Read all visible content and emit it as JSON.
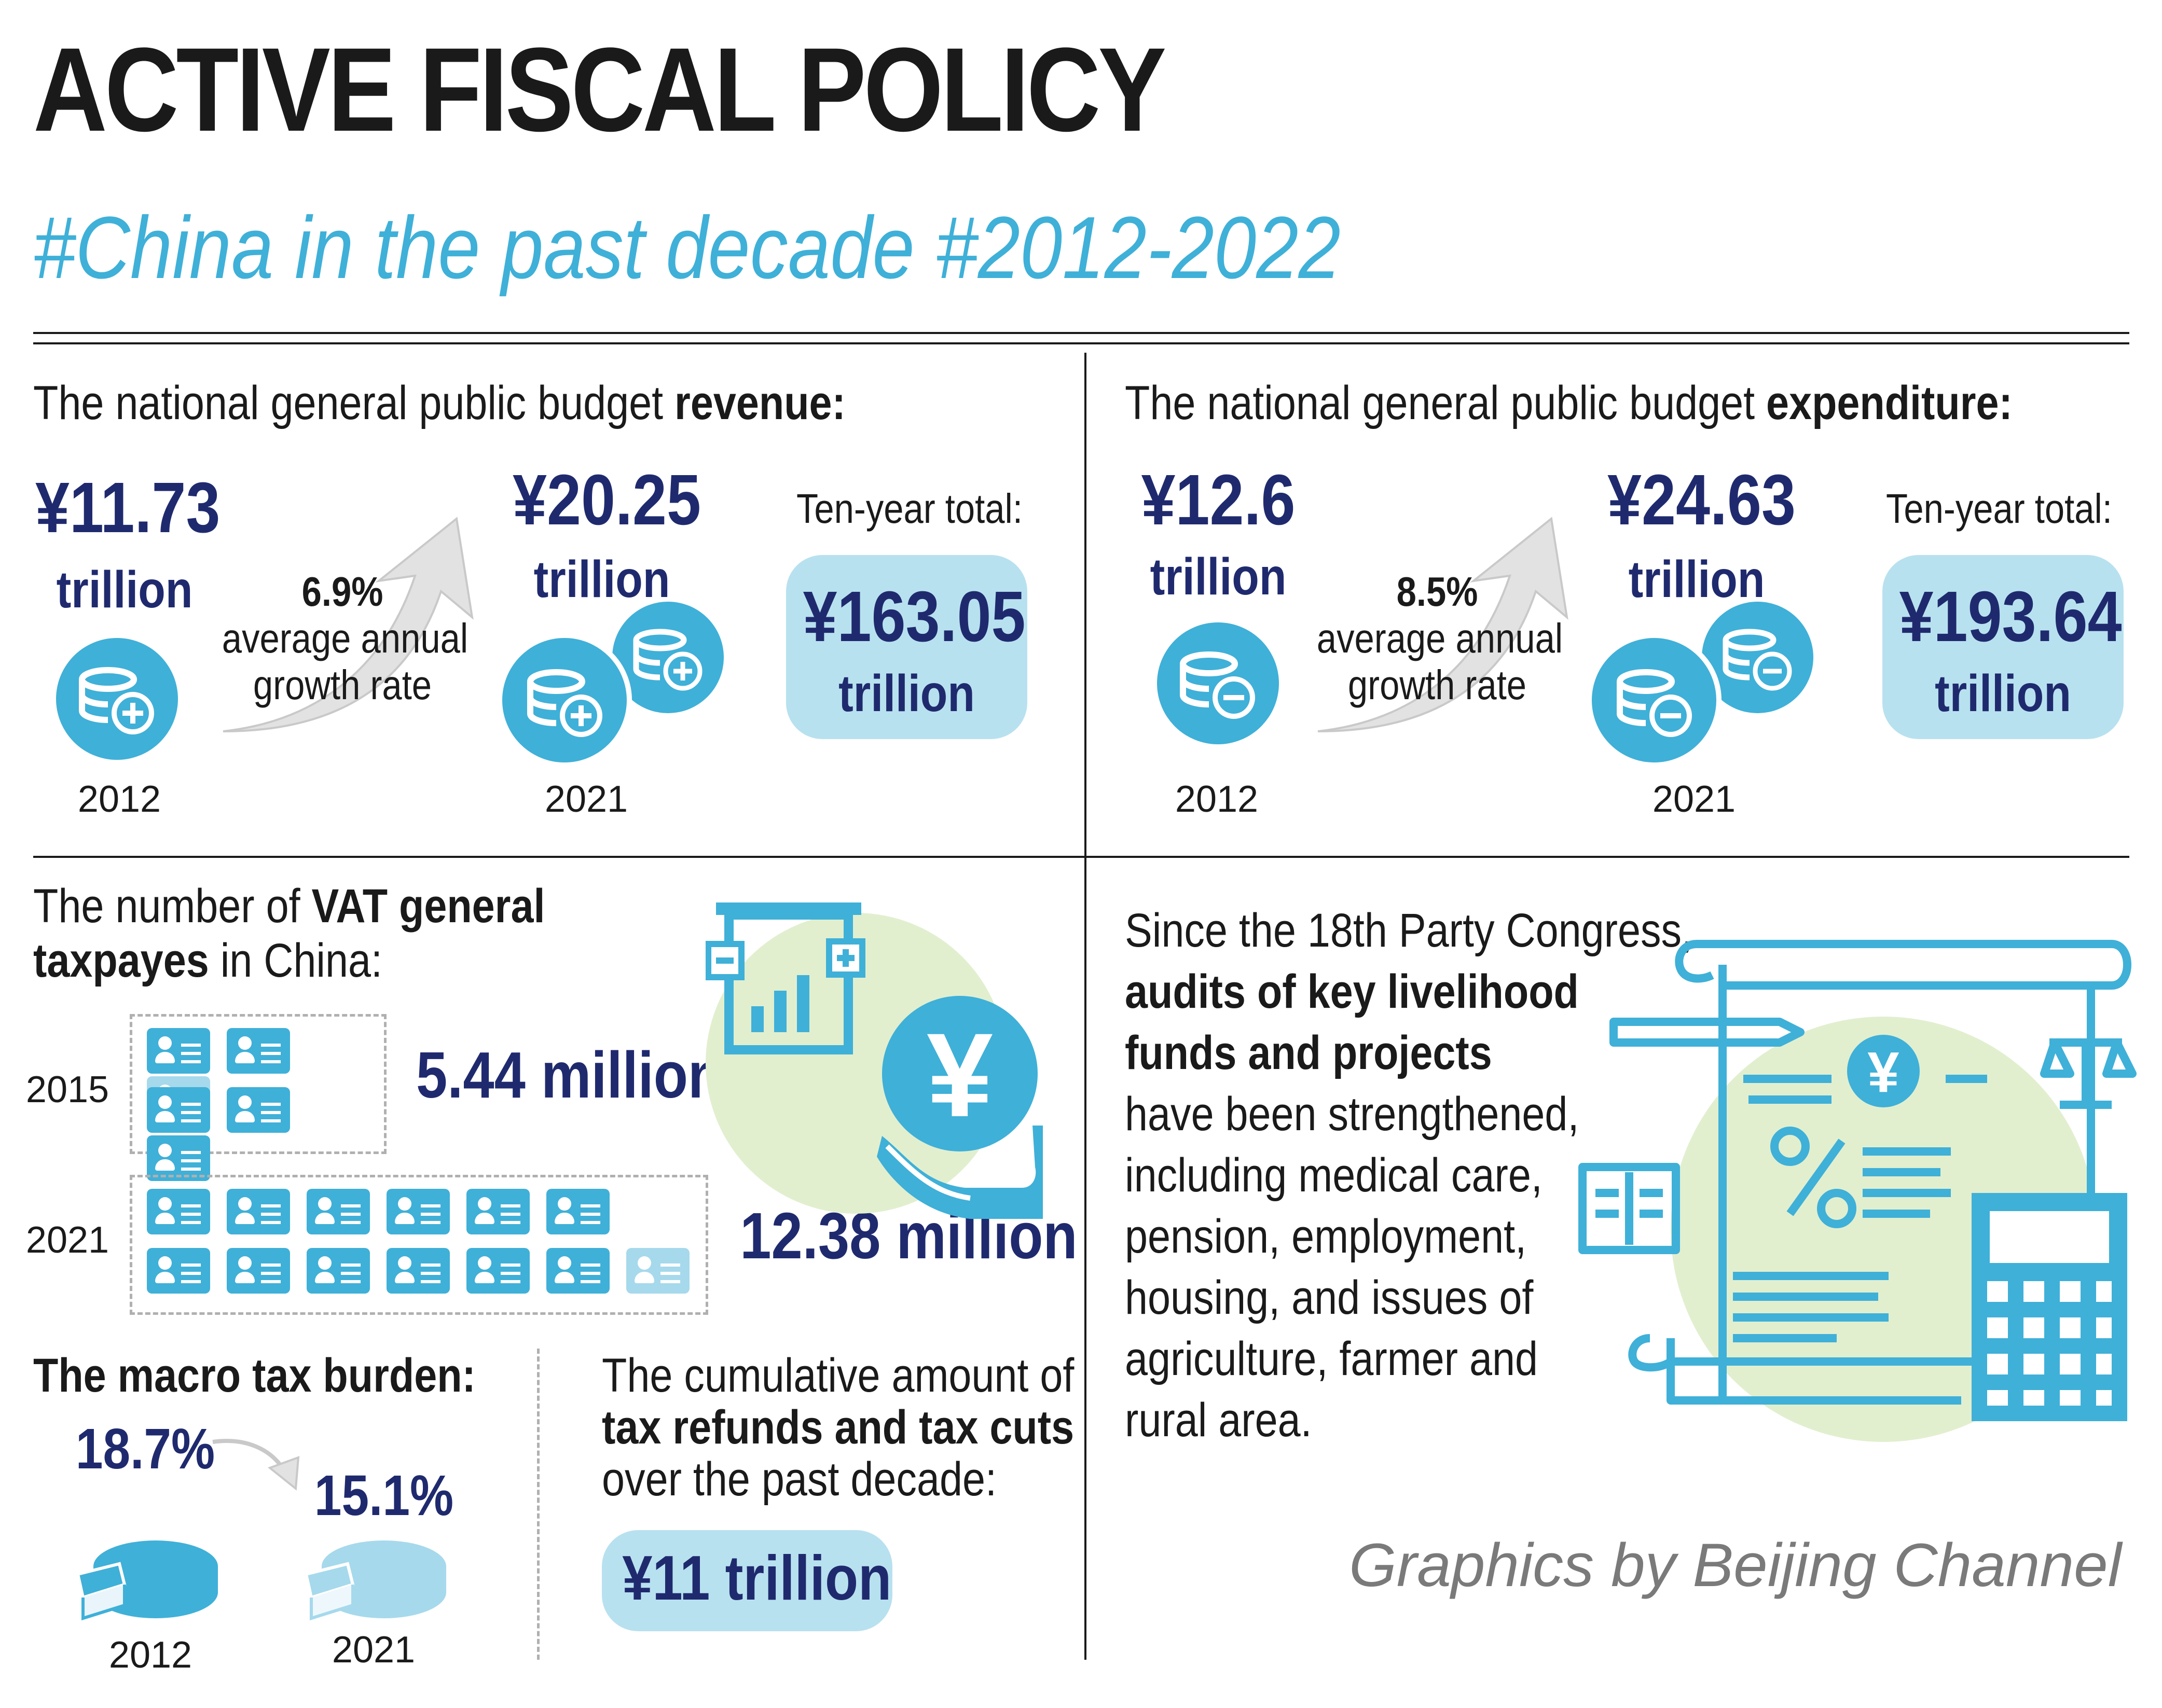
{
  "header": {
    "title": "ACTIVE FISCAL POLICY",
    "subtitle": "#China in the past decade  #2012-2022"
  },
  "revenue": {
    "heading_prefix": "The national general public budget ",
    "heading_bold": "revenue:",
    "y2012": {
      "value": "¥11.73",
      "unit": "trillion",
      "year": "2012"
    },
    "growth": {
      "rate": "6.9%",
      "line1": "average annual",
      "line2": "growth rate"
    },
    "y2021": {
      "value": "¥20.25",
      "unit": "trillion",
      "year": "2021"
    },
    "total": {
      "label": "Ten-year total:",
      "value": "¥163.05",
      "unit": "trillion"
    }
  },
  "expenditure": {
    "heading_prefix": "The national general public budget ",
    "heading_bold": "expenditure:",
    "y2012": {
      "value": "¥12.6",
      "unit": "trillion",
      "year": "2012"
    },
    "growth": {
      "rate": "8.5%",
      "line1": "average annual",
      "line2": "growth rate"
    },
    "y2021": {
      "value": "¥24.63",
      "unit": "trillion",
      "year": "2021"
    },
    "total": {
      "label": "Ten-year total:",
      "value": "¥193.64",
      "unit": "trillion"
    }
  },
  "vat": {
    "line1_prefix": "The number of  ",
    "line1_bold": "VAT general",
    "line2_bold": "taxpayes",
    "line2_suffix": " in China:",
    "row2015": {
      "year": "2015",
      "value": "5.44 million"
    },
    "row2021": {
      "year": "2021",
      "value": "12.38 million"
    },
    "yuan_symbol": "¥"
  },
  "macro": {
    "heading": "The macro tax burden:",
    "v2012": "18.7%",
    "v2021": "15.1%",
    "year2012": "2012",
    "year2021": "2021"
  },
  "cuts": {
    "line1": "The cumulative amount of",
    "line2_bold": "tax refunds and tax cuts",
    "line3": "over the past decade:",
    "value": "¥11 trillion"
  },
  "audit": {
    "line1": "Since the 18th Party Congress,",
    "line2_bold": "audits of key livelihood",
    "line3_bold": "funds and projects",
    "line4": "have been strengthened,",
    "line5": "including medical care,",
    "line6": "pension, employment,",
    "line7": "housing, and issues of",
    "line8": "agriculture, farmer and",
    "line9": "rural area.",
    "yuan_symbol": "¥"
  },
  "credit": "Graphics by Beijing Channel",
  "colors": {
    "accent": "#3fb0d8",
    "navy": "#1f2a6e",
    "pill": "#b8e1ef",
    "green": "#e1efcf"
  }
}
